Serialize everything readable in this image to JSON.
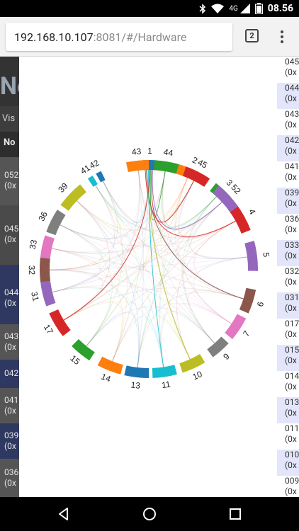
{
  "status_bar": {
    "network": "4G",
    "time": "08.56"
  },
  "browser": {
    "url_host": "192.168.10.107",
    "url_rest": ":8081/#/Hardware",
    "tab_count": "2"
  },
  "background_page": {
    "title_fragment": "No",
    "vis_label": "Vis",
    "column_header": "No",
    "rows": [
      {
        "id": "052",
        "sub": "(0x"
      },
      {
        "id": "045",
        "sub": "(0x"
      },
      {
        "id": "044",
        "sub": "(0x"
      },
      {
        "id": "043",
        "sub": "(0x"
      },
      {
        "id": "042",
        "sub": "(0x"
      },
      {
        "id": "041",
        "sub": "(0x"
      },
      {
        "id": "039",
        "sub": "(0x"
      },
      {
        "id": "036",
        "sub": "(0x"
      }
    ]
  },
  "right_list": [
    {
      "id": "045",
      "sub": "(0x",
      "highlight": false
    },
    {
      "id": "044",
      "sub": "(0x",
      "highlight": true
    },
    {
      "id": "043",
      "sub": "(0x",
      "highlight": false
    },
    {
      "id": "042",
      "sub": "(0x",
      "highlight": true
    },
    {
      "id": "041",
      "sub": "(0x",
      "highlight": false
    },
    {
      "id": "039",
      "sub": "(0x",
      "highlight": true
    },
    {
      "id": "036",
      "sub": "(0x",
      "highlight": false
    },
    {
      "id": "033",
      "sub": "(0x",
      "highlight": true
    },
    {
      "id": "032",
      "sub": "(0x",
      "highlight": false
    },
    {
      "id": "031",
      "sub": "(0x",
      "highlight": true
    },
    {
      "id": "017",
      "sub": "(0x",
      "highlight": false
    },
    {
      "id": "015",
      "sub": "(0x",
      "highlight": true
    },
    {
      "id": "014",
      "sub": "(0x",
      "highlight": false
    },
    {
      "id": "013",
      "sub": "(0x",
      "highlight": true
    },
    {
      "id": "011",
      "sub": "(0x",
      "highlight": false
    },
    {
      "id": "010",
      "sub": "(0x",
      "highlight": true
    },
    {
      "id": "009",
      "sub": "(0x",
      "highlight": false
    }
  ],
  "chord": {
    "groups": [
      {
        "label": "1",
        "color": "#1f77b4"
      },
      {
        "label": "2",
        "color": "#ff7f0e"
      },
      {
        "label": "3",
        "color": "#2ca02c"
      },
      {
        "label": "4",
        "color": "#d62728"
      },
      {
        "label": "5",
        "color": "#9467bd"
      },
      {
        "label": "6",
        "color": "#8c564b"
      },
      {
        "label": "7",
        "color": "#e377c2"
      },
      {
        "label": "9",
        "color": "#7f7f7f"
      },
      {
        "label": "10",
        "color": "#bcbd22"
      },
      {
        "label": "11",
        "color": "#17becf"
      },
      {
        "label": "13",
        "color": "#1f77b4"
      },
      {
        "label": "14",
        "color": "#ff7f0e"
      },
      {
        "label": "15",
        "color": "#2ca02c"
      },
      {
        "label": "17",
        "color": "#d62728"
      },
      {
        "label": "31",
        "color": "#9467bd"
      },
      {
        "label": "32",
        "color": "#8c564b"
      },
      {
        "label": "33",
        "color": "#e377c2"
      },
      {
        "label": "36",
        "color": "#7f7f7f"
      },
      {
        "label": "39",
        "color": "#bcbd22"
      },
      {
        "label": "41",
        "color": "#17becf"
      },
      {
        "label": "42",
        "color": "#1f77b4"
      },
      {
        "label": "43",
        "color": "#ff7f0e"
      },
      {
        "label": "44",
        "color": "#2ca02c"
      },
      {
        "label": "45",
        "color": "#d62728"
      },
      {
        "label": "52",
        "color": "#9467bd"
      }
    ],
    "ribbons": [
      {
        "from": "1",
        "to": "4",
        "color": "#d62728"
      },
      {
        "from": "1",
        "to": "6",
        "color": "#8c564b"
      },
      {
        "from": "1",
        "to": "10",
        "color": "#bcbd22"
      },
      {
        "from": "1",
        "to": "11",
        "color": "#17becf"
      },
      {
        "from": "1",
        "to": "17",
        "color": "#d62728"
      },
      {
        "from": "1",
        "to": "44",
        "color": "#2ca02c"
      },
      {
        "from": "1",
        "to": "45",
        "color": "#d62728"
      },
      {
        "from": "1",
        "to": "52",
        "color": "#9467bd"
      }
    ]
  }
}
